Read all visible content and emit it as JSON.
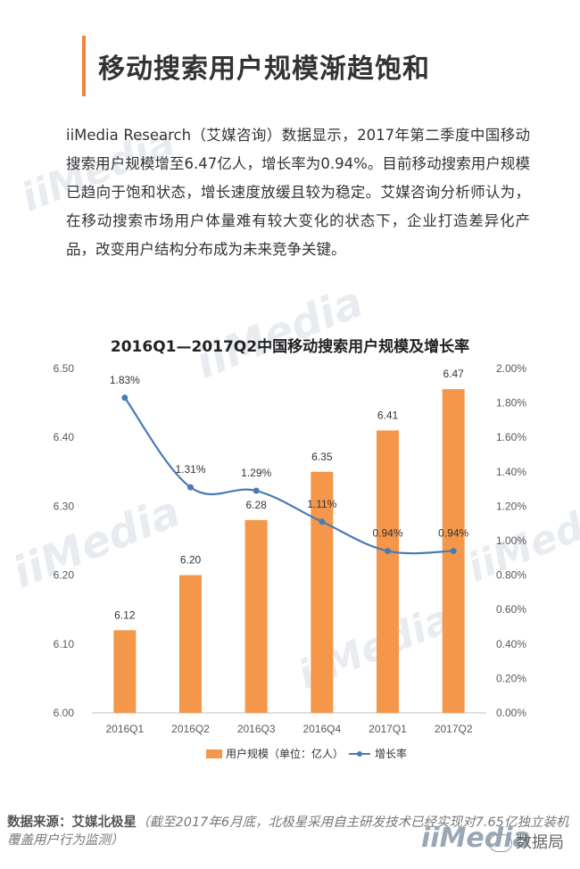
{
  "header": {
    "title": "移动搜索用户规模渐趋饱和"
  },
  "intro": {
    "text": "iiMedia Research（艾媒咨询）数据显示，2017年第二季度中国移动搜索用户规模增至6.47亿人，增长率为0.94%。目前移动搜索用户规模已趋向于饱和状态，增长速度放缓且较为稳定。艾媒咨询分析师认为，在移动搜索市场用户体量难有较大变化的状态下，企业打造差异化产品，改变用户结构分布成为未来竞争关键。"
  },
  "watermarks": {
    "text": "iiMedia"
  },
  "colors": {
    "accent": "#f0843c",
    "bar": "#f4974a",
    "line": "#4a7ab5",
    "axis_text": "#595959"
  },
  "chart_data": {
    "type": "bar",
    "title": "2016Q1—2017Q2中国移动搜索用户规模及增长率",
    "categories": [
      "2016Q1",
      "2016Q2",
      "2016Q3",
      "2016Q4",
      "2017Q1",
      "2017Q2"
    ],
    "series": [
      {
        "name": "用户规模（单位：亿人）",
        "type": "bar",
        "axis": "left",
        "values": [
          6.12,
          6.2,
          6.28,
          6.35,
          6.41,
          6.47
        ],
        "labels": [
          "6.12",
          "6.20",
          "6.28",
          "6.35",
          "6.41",
          "6.47"
        ]
      },
      {
        "name": "增长率",
        "type": "line",
        "axis": "right",
        "values": [
          1.83,
          1.31,
          1.29,
          1.11,
          0.94,
          0.94
        ],
        "labels": [
          "1.83%",
          "1.31%",
          "1.29%",
          "1.11%",
          "0.94%",
          "0.94%"
        ]
      }
    ],
    "y_left": {
      "range": [
        6.0,
        6.5
      ],
      "ticks": [
        "6.00",
        "6.10",
        "6.20",
        "6.30",
        "6.40",
        "6.50"
      ]
    },
    "y_right": {
      "range": [
        0,
        2.0
      ],
      "ticks": [
        "0.00%",
        "0.20%",
        "0.40%",
        "0.60%",
        "0.80%",
        "1.00%",
        "1.20%",
        "1.40%",
        "1.60%",
        "1.80%",
        "2.00%"
      ]
    },
    "grid": false,
    "legend": "bottom"
  },
  "footer": {
    "source_label": "数据来源：艾媒北极星",
    "source_note": "（截至2017年6月底，北极星采用自主研发技术已经实现对7.65亿独立装机覆盖用户行为监测）",
    "logo_text": "iiMedia",
    "wechat_name": "数据局"
  }
}
